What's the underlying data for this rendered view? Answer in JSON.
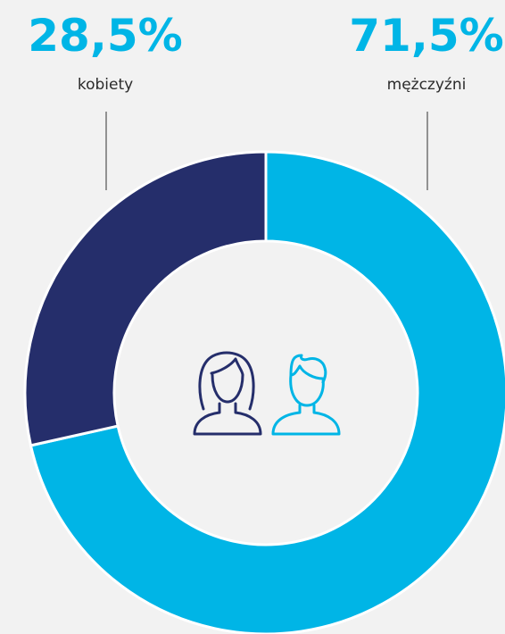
{
  "chart_data": {
    "type": "donut",
    "categories": [
      "kobiety",
      "mężczyźni"
    ],
    "values": [
      28.5,
      71.5
    ],
    "value_labels": [
      "28,5%",
      "71,5%"
    ],
    "colors": [
      "#252e6b",
      "#00b5e6"
    ]
  }
}
